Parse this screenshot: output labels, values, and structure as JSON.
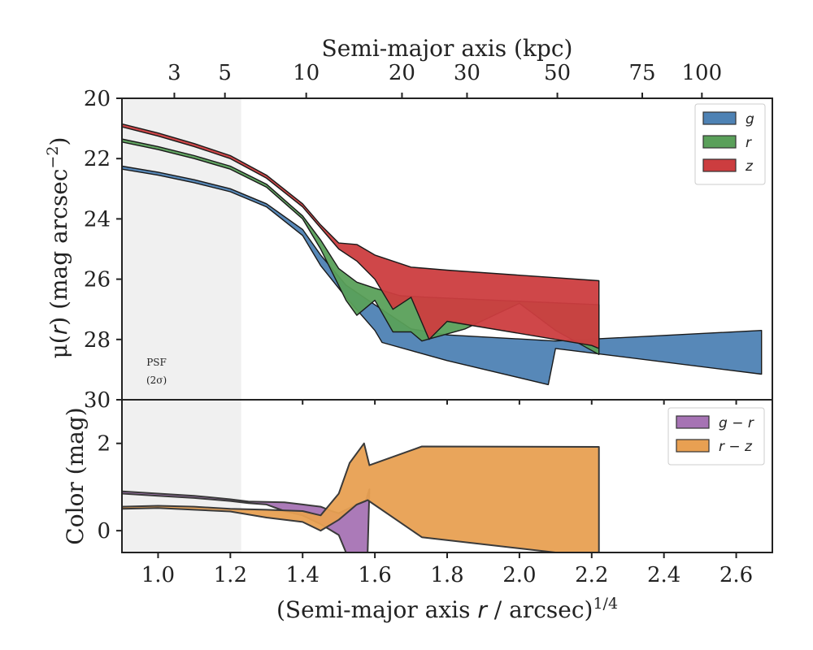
{
  "chart_data": [
    {
      "type": "area",
      "panel": "surface-brightness",
      "xlabel": "(Semi-major axis r / arcsec)^1/4",
      "ylabel": "μ(r) (mag arcsec^−2)",
      "xlim": [
        0.9,
        2.7
      ],
      "ylim": [
        30,
        20
      ],
      "y_inverted": true,
      "top_axis": {
        "label": "Semi-major axis (kpc)",
        "ticks": [
          3,
          5,
          10,
          20,
          30,
          50,
          75,
          100
        ],
        "tick_x": [
          1.045,
          1.185,
          1.41,
          1.675,
          1.855,
          2.105,
          2.34,
          2.505
        ]
      },
      "yticks": [
        20,
        22,
        24,
        26,
        28,
        30
      ],
      "grid": false,
      "legend": {
        "position": "top-right"
      },
      "psf_band": {
        "x_range": [
          0.9,
          1.23
        ],
        "label_line1": "PSF",
        "label_line2": "(2σ)",
        "label_x": 0.98,
        "label_y1": 28.7,
        "label_y2": 29.3
      },
      "series": [
        {
          "name": "g",
          "color": "#4e82b4",
          "upper": [
            [
              0.9,
              22.25
            ],
            [
              1.0,
              22.45
            ],
            [
              1.1,
              22.7
            ],
            [
              1.2,
              23.0
            ],
            [
              1.3,
              23.5
            ],
            [
              1.4,
              24.35
            ],
            [
              1.45,
              25.2
            ],
            [
              1.52,
              26.2
            ],
            [
              1.6,
              26.85
            ],
            [
              1.65,
              27.25
            ],
            [
              1.7,
              27.65
            ],
            [
              1.8,
              27.85
            ],
            [
              2.1,
              28.05
            ],
            [
              2.67,
              27.7
            ]
          ],
          "lower": [
            [
              0.9,
              22.35
            ],
            [
              1.0,
              22.55
            ],
            [
              1.1,
              22.8
            ],
            [
              1.2,
              23.1
            ],
            [
              1.3,
              23.6
            ],
            [
              1.4,
              24.55
            ],
            [
              1.45,
              25.55
            ],
            [
              1.52,
              26.6
            ],
            [
              1.6,
              27.7
            ],
            [
              1.62,
              28.1
            ],
            [
              1.8,
              28.7
            ],
            [
              2.08,
              29.5
            ],
            [
              2.1,
              28.3
            ],
            [
              2.67,
              29.15
            ]
          ]
        },
        {
          "name": "r",
          "color": "#5aa05a",
          "upper": [
            [
              0.9,
              21.35
            ],
            [
              1.0,
              21.6
            ],
            [
              1.1,
              21.9
            ],
            [
              1.2,
              22.25
            ],
            [
              1.3,
              22.85
            ],
            [
              1.4,
              23.9
            ],
            [
              1.45,
              24.7
            ],
            [
              1.5,
              25.65
            ],
            [
              1.55,
              26.1
            ],
            [
              1.6,
              26.3
            ],
            [
              1.67,
              26.55
            ],
            [
              1.75,
              26.6
            ],
            [
              2.22,
              26.85
            ]
          ],
          "lower": [
            [
              0.9,
              21.45
            ],
            [
              1.0,
              21.7
            ],
            [
              1.1,
              22.0
            ],
            [
              1.2,
              22.35
            ],
            [
              1.3,
              22.95
            ],
            [
              1.4,
              24.0
            ],
            [
              1.45,
              25.0
            ],
            [
              1.52,
              26.7
            ],
            [
              1.55,
              27.2
            ],
            [
              1.6,
              26.7
            ],
            [
              1.65,
              27.75
            ],
            [
              1.7,
              27.75
            ],
            [
              1.73,
              28.05
            ],
            [
              1.85,
              27.65
            ],
            [
              2.0,
              26.8
            ],
            [
              2.1,
              27.7
            ],
            [
              2.22,
              28.5
            ]
          ]
        },
        {
          "name": "z",
          "color": "#cc3d3f",
          "upper": [
            [
              0.9,
              20.85
            ],
            [
              1.0,
              21.15
            ],
            [
              1.1,
              21.5
            ],
            [
              1.2,
              21.9
            ],
            [
              1.3,
              22.55
            ],
            [
              1.4,
              23.5
            ],
            [
              1.45,
              24.2
            ],
            [
              1.5,
              24.8
            ],
            [
              1.55,
              24.85
            ],
            [
              1.6,
              25.2
            ],
            [
              1.7,
              25.6
            ],
            [
              1.8,
              25.7
            ],
            [
              2.22,
              26.05
            ]
          ],
          "lower": [
            [
              0.9,
              20.95
            ],
            [
              1.0,
              21.25
            ],
            [
              1.1,
              21.6
            ],
            [
              1.2,
              22.0
            ],
            [
              1.3,
              22.65
            ],
            [
              1.4,
              23.6
            ],
            [
              1.45,
              24.3
            ],
            [
              1.5,
              25.0
            ],
            [
              1.55,
              25.4
            ],
            [
              1.6,
              26.0
            ],
            [
              1.65,
              27.0
            ],
            [
              1.7,
              26.6
            ],
            [
              1.75,
              28.0
            ],
            [
              1.8,
              27.4
            ],
            [
              2.2,
              28.2
            ],
            [
              2.22,
              28.3
            ]
          ]
        }
      ]
    },
    {
      "type": "area",
      "panel": "color",
      "xlabel": "(Semi-major axis r / arcsec)^1/4",
      "ylabel": "Color (mag)",
      "xlim": [
        0.9,
        2.7
      ],
      "ylim": [
        -0.5,
        3.0
      ],
      "xticks": [
        1.0,
        1.2,
        1.4,
        1.6,
        1.8,
        2.0,
        2.2,
        2.4,
        2.6
      ],
      "xtick_labels": [
        "1.0",
        "1.2",
        "1.4",
        "1.6",
        "1.8",
        "2.0",
        "2.2",
        "2.4",
        "2.6"
      ],
      "yticks": [
        0,
        2
      ],
      "grid": false,
      "legend": {
        "position": "top-right"
      },
      "series": [
        {
          "name": "g − r",
          "color": "#a673b4",
          "upper": [
            [
              0.9,
              0.9
            ],
            [
              1.0,
              0.85
            ],
            [
              1.1,
              0.8
            ],
            [
              1.2,
              0.72
            ],
            [
              1.25,
              0.67
            ],
            [
              1.35,
              0.65
            ],
            [
              1.4,
              0.6
            ],
            [
              1.45,
              0.55
            ],
            [
              1.48,
              0.45
            ],
            [
              1.5,
              0.4
            ],
            [
              1.55,
              0.6
            ],
            [
              1.575,
              0.68
            ],
            [
              1.585,
              0.95
            ]
          ],
          "lower": [
            [
              0.9,
              0.85
            ],
            [
              1.0,
              0.8
            ],
            [
              1.1,
              0.75
            ],
            [
              1.2,
              0.68
            ],
            [
              1.25,
              0.63
            ],
            [
              1.3,
              0.6
            ],
            [
              1.35,
              0.45
            ],
            [
              1.4,
              0.35
            ],
            [
              1.45,
              0.15
            ],
            [
              1.5,
              -0.1
            ],
            [
              1.52,
              -0.5
            ],
            [
              1.58,
              -0.5
            ]
          ]
        },
        {
          "name": "r − z",
          "color": "#e8a052",
          "upper": [
            [
              0.9,
              0.55
            ],
            [
              1.0,
              0.57
            ],
            [
              1.1,
              0.55
            ],
            [
              1.2,
              0.5
            ],
            [
              1.3,
              0.48
            ],
            [
              1.4,
              0.45
            ],
            [
              1.45,
              0.35
            ],
            [
              1.5,
              0.85
            ],
            [
              1.53,
              1.55
            ],
            [
              1.57,
              2.0
            ],
            [
              1.585,
              1.5
            ],
            [
              1.73,
              1.93
            ],
            [
              2.22,
              1.92
            ]
          ],
          "lower": [
            [
              0.9,
              0.5
            ],
            [
              1.0,
              0.52
            ],
            [
              1.1,
              0.48
            ],
            [
              1.2,
              0.44
            ],
            [
              1.3,
              0.3
            ],
            [
              1.4,
              0.2
            ],
            [
              1.45,
              0.0
            ],
            [
              1.5,
              0.25
            ],
            [
              1.55,
              0.6
            ],
            [
              1.58,
              0.7
            ],
            [
              1.73,
              -0.15
            ],
            [
              2.1,
              -0.5
            ],
            [
              2.22,
              -0.5
            ]
          ]
        }
      ]
    }
  ]
}
